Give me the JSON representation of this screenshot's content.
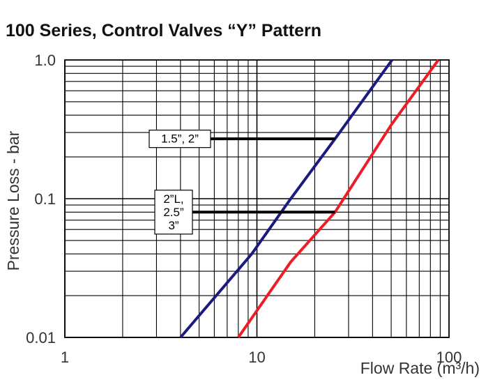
{
  "chart_data": {
    "type": "line",
    "title": "100 Series, Control Valves “Y” Pattern",
    "xlabel": "Flow Rate (m³/h)",
    "ylabel": "Pressure Loss - bar",
    "x_scale": "log",
    "y_scale": "log",
    "xlim": [
      1,
      100
    ],
    "ylim": [
      0.01,
      1.0
    ],
    "x_ticks": [
      {
        "value": 1,
        "label": "1"
      },
      {
        "value": 10,
        "label": "10"
      },
      {
        "value": 100,
        "label": "100"
      }
    ],
    "y_ticks": [
      {
        "value": 0.01,
        "label": "0.01"
      },
      {
        "value": 0.1,
        "label": "0.1"
      },
      {
        "value": 1.0,
        "label": "1.0"
      }
    ],
    "grid": true,
    "series": [
      {
        "color": "#1a1a80",
        "x": [
          4.0,
          9.4,
          15.0,
          25.5,
          50.5
        ],
        "y": [
          0.01,
          0.04,
          0.1,
          0.27,
          1.0
        ]
      },
      {
        "color": "#ee1c25",
        "x": [
          8.0,
          15.0,
          25.5,
          50.0,
          88.0
        ],
        "y": [
          0.01,
          0.035,
          0.08,
          0.34,
          1.0
        ]
      }
    ],
    "annotations": [
      {
        "lines": [
          "1.5”, 2”"
        ],
        "y": 0.27,
        "x_end": 25.5,
        "series_color": "#1a1a80"
      },
      {
        "lines": [
          "2”L,",
          "2.5”",
          "3”"
        ],
        "y": 0.08,
        "x_end": 25.5,
        "series_color": "#ee1c25"
      }
    ]
  }
}
